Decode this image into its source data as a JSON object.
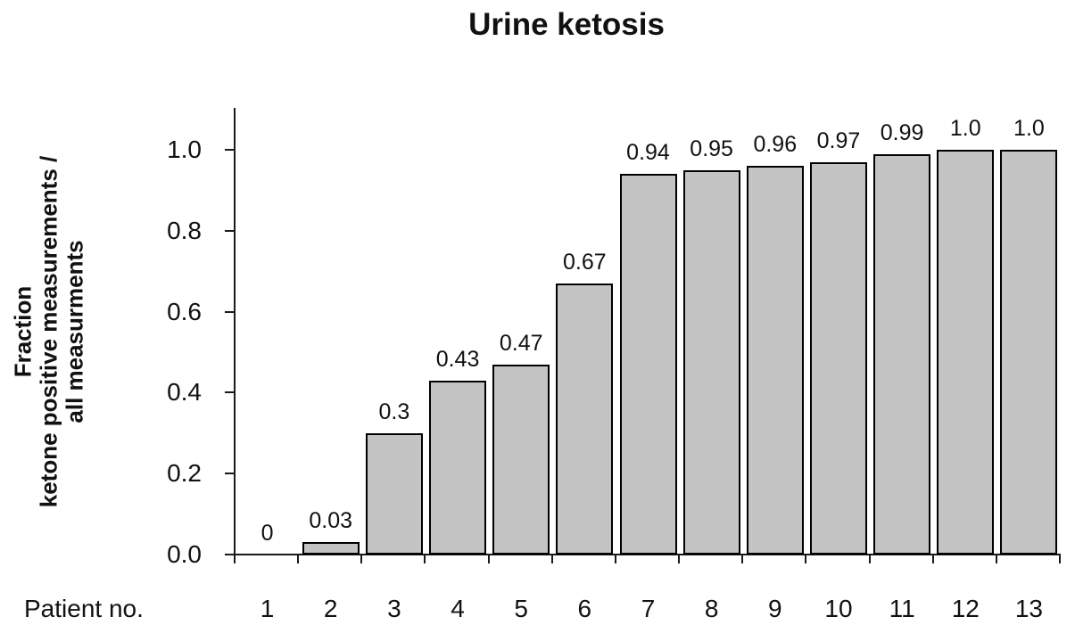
{
  "title": "Urine ketosis",
  "chart_data": {
    "type": "bar",
    "title": "Urine ketosis",
    "xlabel": "Patient no.",
    "ylabel_lines": [
      "Fraction",
      "ketone positive measurements /",
      "all measurments"
    ],
    "categories": [
      "1",
      "2",
      "3",
      "4",
      "5",
      "6",
      "7",
      "8",
      "9",
      "10",
      "11",
      "12",
      "13"
    ],
    "values": [
      0,
      0.03,
      0.3,
      0.43,
      0.47,
      0.67,
      0.94,
      0.95,
      0.96,
      0.97,
      0.99,
      1.0,
      1.0
    ],
    "bar_labels": [
      "0",
      "0.03",
      "0.3",
      "0.43",
      "0.47",
      "0.67",
      "0.94",
      "0.95",
      "0.96",
      "0.97",
      "0.99",
      "1.0",
      "1.0"
    ],
    "ylim": [
      0.0,
      1.0
    ],
    "yticks": [
      0.0,
      0.2,
      0.4,
      0.6,
      0.8,
      1.0
    ],
    "ytick_labels": [
      "0.0",
      "0.2",
      "0.4",
      "0.6",
      "0.8",
      "1.0"
    ],
    "grid": false,
    "legend": "none",
    "bar_fill_color": "#c4c4c4",
    "bar_border_color": "#000000",
    "axis_color": "#1a1a1a",
    "text_color": "#111111"
  }
}
